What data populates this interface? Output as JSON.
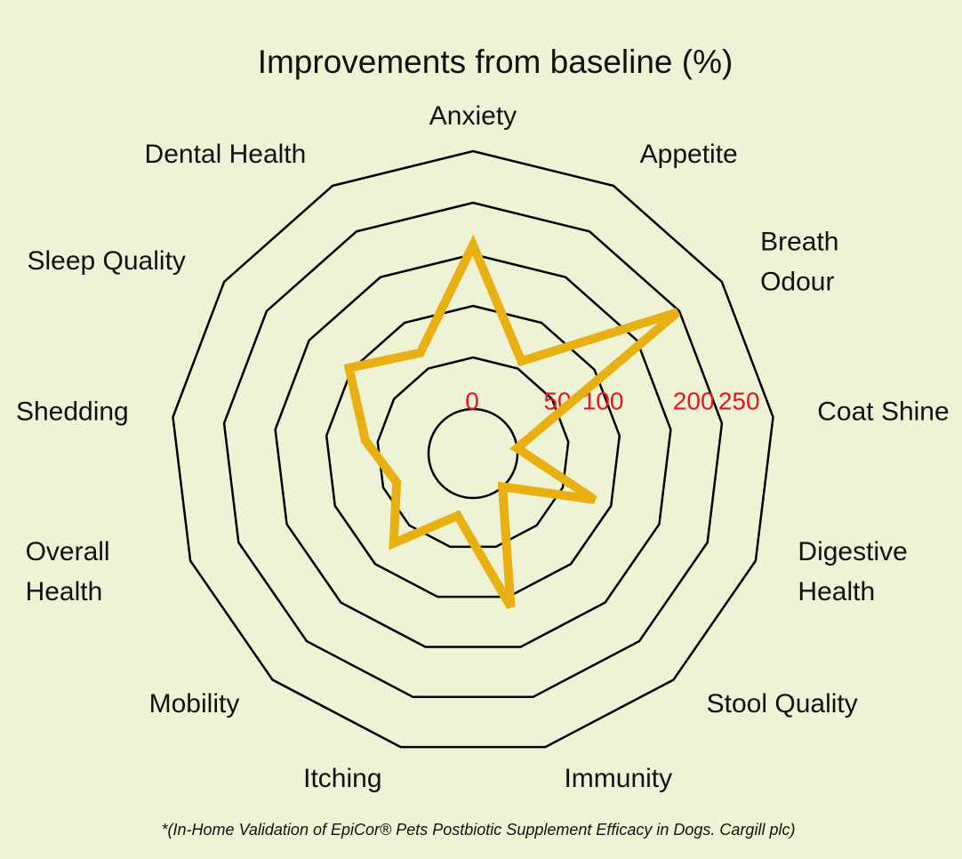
{
  "chart_data": {
    "type": "radar",
    "title": "Improvements from baseline (%)",
    "footnote": "*(In-Home Validation of EpiCor® Pets Postbiotic Supplement Efficacy in Dogs. Cargill plc)",
    "categories": [
      "Anxiety",
      "Appetite",
      "Breath Odour",
      "Coat Shine",
      "Digestive Health",
      "Stool Quality",
      "Immunity",
      "Itching",
      "Mobility",
      "Overall Health",
      "Shedding",
      "Sleep Quality",
      "Dental Health"
    ],
    "values": [
      159,
      58,
      198,
      0,
      83,
      0,
      110,
      19,
      73,
      36,
      62,
      103,
      67
    ],
    "color": "#e8b012",
    "rlim": [
      0,
      250
    ],
    "rgrid": [
      0,
      50,
      100,
      150,
      200,
      250
    ],
    "rticks": [
      0,
      50,
      100,
      200,
      250
    ]
  }
}
